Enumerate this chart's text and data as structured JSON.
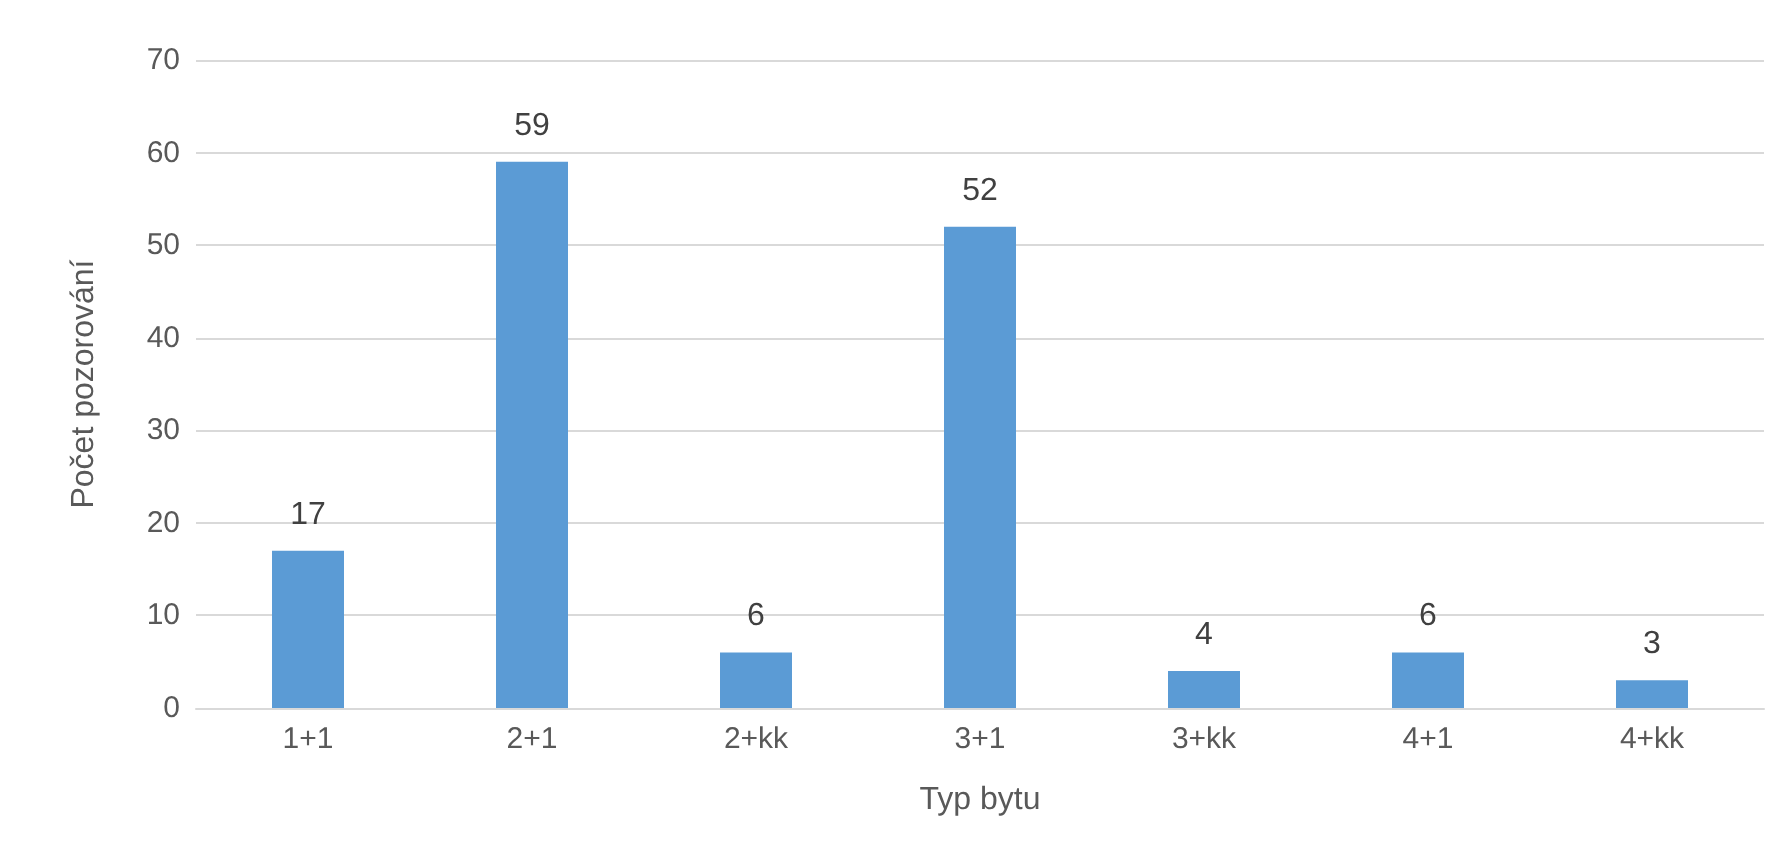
{
  "chart_data": {
    "type": "bar",
    "xlabel": "Typ bytu",
    "ylabel": "Počet pozorování",
    "categories": [
      "1+1",
      "2+1",
      "2+kk",
      "3+1",
      "3+kk",
      "4+1",
      "4+kk"
    ],
    "values": [
      17,
      59,
      6,
      52,
      4,
      6,
      3
    ],
    "color": "#5b9bd5",
    "ylim": [
      0,
      70
    ],
    "yticks": [
      0,
      10,
      20,
      30,
      40,
      50,
      60,
      70
    ],
    "grid": "y",
    "data_labels": true
  }
}
